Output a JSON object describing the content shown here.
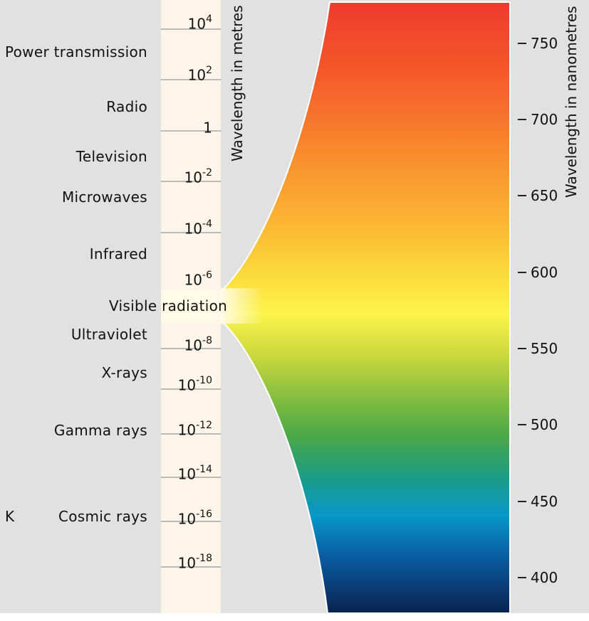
{
  "radiation_types": [
    {
      "label": "Power transmission"
    },
    {
      "label": "Radio"
    },
    {
      "label": "Television"
    },
    {
      "label": "Microwaves"
    },
    {
      "label": "Infrared"
    },
    {
      "label": "Ultraviolet"
    },
    {
      "label": "X-rays"
    },
    {
      "label": "Gamma rays"
    },
    {
      "label": "Cosmic rays"
    }
  ],
  "visible_label": "Visible radiation",
  "side_letter": "K",
  "metres_axis": {
    "title": "Wavelength in metres",
    "ticks": [
      {
        "base": "10",
        "exp": "4"
      },
      {
        "base": "10",
        "exp": "2"
      },
      {
        "base": "1",
        "exp": ""
      },
      {
        "base": "10",
        "exp": "-2"
      },
      {
        "base": "10",
        "exp": "-4"
      },
      {
        "base": "10",
        "exp": "-6"
      },
      {
        "base": "10",
        "exp": "-8"
      },
      {
        "base": "10",
        "exp": "-10"
      },
      {
        "base": "10",
        "exp": "-12"
      },
      {
        "base": "10",
        "exp": "-14"
      },
      {
        "base": "10",
        "exp": "-16"
      },
      {
        "base": "10",
        "exp": "-18"
      }
    ]
  },
  "nanometres_axis": {
    "title": "Wavelength in nanometres",
    "ticks": [
      "750",
      "700",
      "650",
      "600",
      "550",
      "500",
      "450",
      "400"
    ]
  },
  "colors": {
    "background": "#e1e1e1",
    "scale_column": "#fdf5ea",
    "spectrum": [
      "#f03a2c",
      "#f55a2a",
      "#f8892d",
      "#fbb533",
      "#fbd83a",
      "#fdf44a",
      "#c8d83c",
      "#8cc040",
      "#4aa848",
      "#1a9b88",
      "#0898c8",
      "#0a5aa0",
      "#0a2350"
    ]
  }
}
